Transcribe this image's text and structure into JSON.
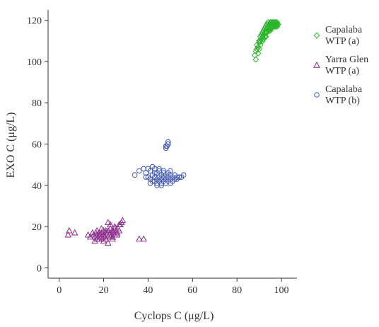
{
  "chart_data": {
    "type": "scatter",
    "title": "",
    "xlabel": "Cyclops C (μg/L)",
    "ylabel": "EXO C (μg/L)",
    "xlim": [
      -5,
      107
    ],
    "ylim": [
      -5,
      125
    ],
    "xticks": [
      0,
      20,
      40,
      60,
      80,
      100
    ],
    "yticks": [
      0,
      20,
      40,
      60,
      80,
      100,
      120
    ],
    "grid": false,
    "legend_position": "top-right",
    "series": [
      {
        "name": "Capalaba WTP (a)",
        "marker": "diamond",
        "color": "#2db52d",
        "x": [
          88,
          88.5,
          89,
          89,
          89.5,
          90,
          90,
          90.5,
          90.5,
          91,
          91,
          91.5,
          91.5,
          92,
          92,
          92.5,
          92.5,
          93,
          93,
          93,
          93.5,
          93.5,
          94,
          94,
          94,
          94.5,
          94.5,
          95,
          95,
          95,
          95.5,
          95.5,
          96,
          96,
          96,
          96.5,
          96.5,
          97,
          97,
          97,
          97.5,
          97.5,
          98,
          98,
          98.5,
          88.5,
          89.5,
          90.5,
          91.5,
          92.5,
          93.5,
          94.5,
          95.5,
          96.5,
          97.5,
          98,
          95,
          93,
          92,
          90
        ],
        "y": [
          103,
          105,
          106,
          108,
          107,
          109,
          110,
          110,
          112,
          111,
          113,
          112,
          114,
          113,
          115,
          114,
          116,
          115,
          117,
          114,
          116,
          118,
          115,
          117,
          119,
          116,
          118,
          116,
          118,
          119,
          117,
          119,
          117,
          118,
          119,
          118,
          119,
          118,
          119,
          117,
          118,
          119,
          118,
          119,
          118,
          101,
          104,
          108,
          110,
          112,
          114,
          115,
          116,
          117,
          117,
          117,
          115,
          112,
          111,
          106
        ]
      },
      {
        "name": "Yarra Glen WTP (a)",
        "marker": "triangle",
        "color": "#8b2a8b",
        "x": [
          4,
          4.5,
          7,
          13,
          14,
          15,
          15.5,
          16,
          16.5,
          17,
          17,
          17.5,
          18,
          18,
          18.5,
          19,
          19,
          19.5,
          20,
          20,
          20.5,
          21,
          21,
          21.5,
          22,
          22,
          22.5,
          23,
          23,
          23.5,
          24,
          24,
          24.5,
          25,
          25,
          25.5,
          26,
          26.5,
          27,
          27.5,
          28,
          28.5,
          22,
          23,
          36,
          38,
          16,
          19,
          21,
          24,
          26,
          18,
          20,
          22,
          25,
          27,
          17,
          23
        ],
        "y": [
          16,
          18,
          17,
          16,
          15,
          17,
          16,
          15,
          17,
          14,
          16,
          15,
          17,
          14,
          16,
          15,
          17,
          14,
          16,
          18,
          15,
          17,
          14,
          16,
          15,
          18,
          16,
          17,
          15,
          16,
          18,
          15,
          17,
          19,
          16,
          18,
          17,
          19,
          18,
          21,
          22,
          23,
          22,
          21,
          14,
          14,
          13,
          19,
          18,
          14,
          16,
          16,
          13,
          12,
          20,
          21,
          18,
          19
        ]
      },
      {
        "name": "Capalaba WTP (b)",
        "marker": "circle",
        "color": "#3f57b5",
        "x": [
          34,
          36,
          38,
          39,
          40,
          40,
          41,
          41,
          42,
          42,
          43,
          43,
          43,
          44,
          44,
          44,
          45,
          45,
          45,
          46,
          46,
          46,
          47,
          47,
          47,
          48,
          48,
          48,
          49,
          49,
          49,
          50,
          50,
          50,
          51,
          51,
          52,
          52,
          53,
          54,
          55,
          56,
          48,
          48.5,
          49,
          49,
          48,
          49,
          41,
          43,
          45,
          47,
          44,
          46,
          42,
          50,
          39,
          53
        ],
        "y": [
          45,
          47,
          48,
          46,
          44,
          48,
          43,
          47,
          45,
          49,
          42,
          44,
          46,
          41,
          43,
          46,
          42,
          44,
          47,
          41,
          43,
          45,
          42,
          44,
          46,
          41,
          43,
          45,
          42,
          44,
          46,
          41,
          43,
          45,
          42,
          44,
          43,
          45,
          44,
          44,
          44,
          45,
          58,
          59,
          60,
          61,
          59,
          60,
          41,
          48,
          48,
          47,
          40,
          40,
          42,
          47,
          44,
          43
        ]
      }
    ]
  }
}
